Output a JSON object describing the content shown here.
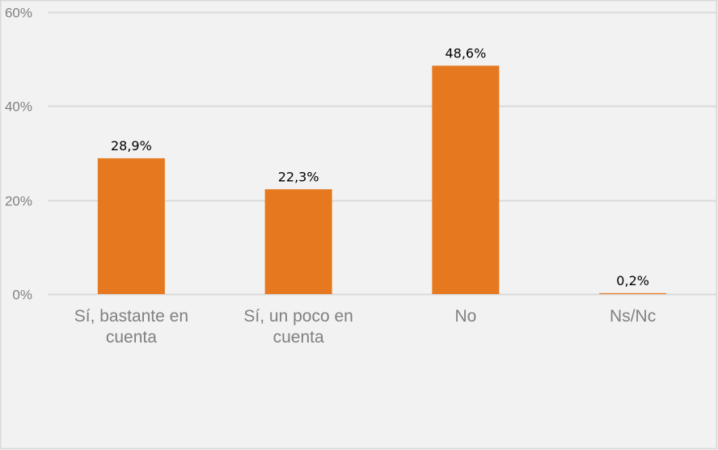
{
  "chart_data": {
    "type": "bar",
    "title": "",
    "xlabel": "",
    "ylabel": "",
    "categories": [
      [
        "Sí, bastante en",
        "cuenta"
      ],
      [
        "Sí, un poco en",
        "cuenta"
      ],
      [
        "No"
      ],
      [
        "Ns/Nc"
      ]
    ],
    "values": [
      28.9,
      22.3,
      48.6,
      0.2
    ],
    "data_labels": [
      "28,9%",
      "22,3%",
      "48,6%",
      "0,2%"
    ],
    "ylim": [
      0,
      60
    ],
    "yticks": [
      0,
      20,
      40,
      60
    ],
    "ytick_labels": [
      "0%",
      "20%",
      "40%",
      "60%"
    ],
    "grid": true,
    "legend": "none",
    "colors": {
      "bar": "#E67820",
      "background": "#F2F2F2",
      "grid": "#D9D9D9",
      "border": "#D9D9D9"
    }
  }
}
